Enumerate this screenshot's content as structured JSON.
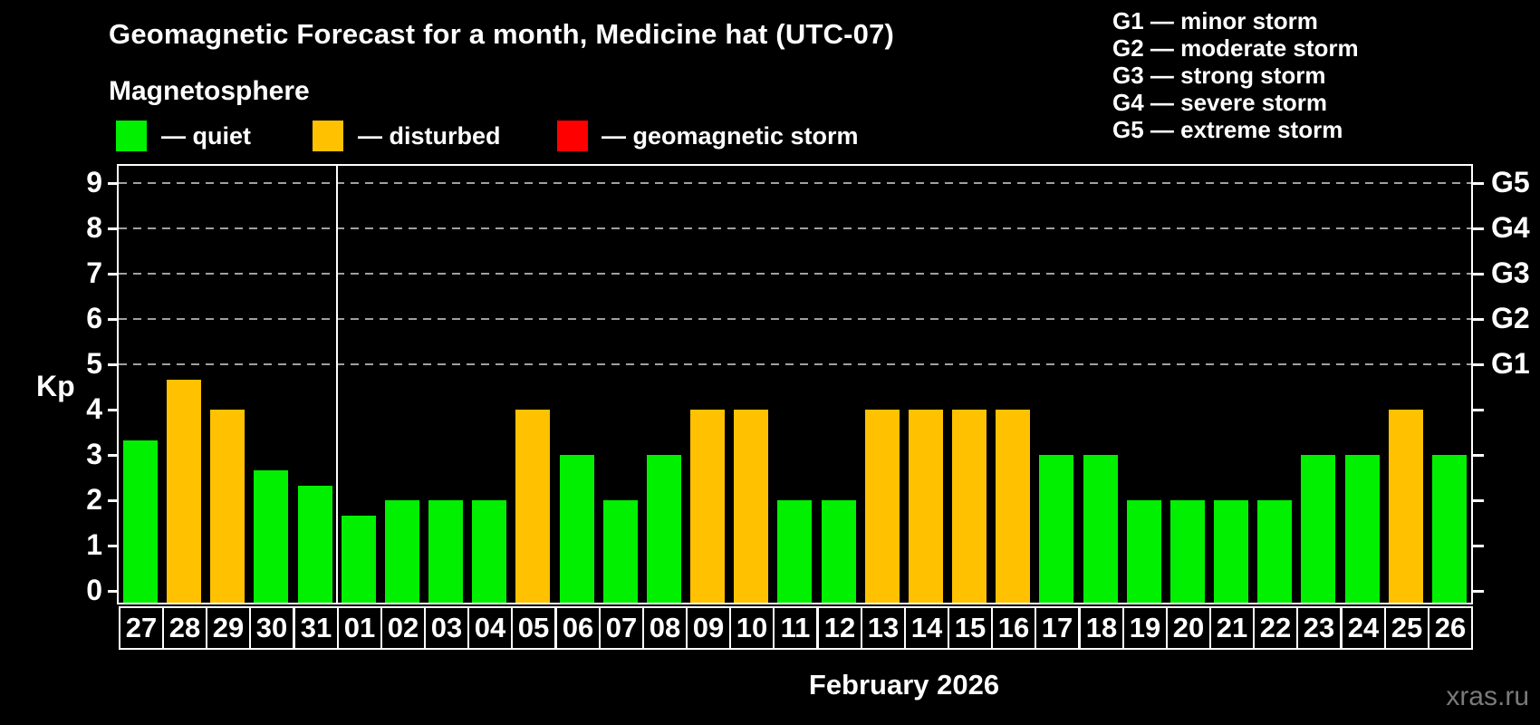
{
  "header": {
    "title": "Geomagnetic Forecast for a month, Medicine hat (UTC-07)",
    "subtitle": "Magnetosphere"
  },
  "legend": {
    "items": [
      {
        "label": "— quiet",
        "status": "quiet",
        "color": "#00f000"
      },
      {
        "label": "— disturbed",
        "status": "disturbed",
        "color": "#ffc100"
      },
      {
        "label": "— geomagnetic storm",
        "status": "storm",
        "color": "#ff0000"
      }
    ]
  },
  "g_scale_legend": {
    "items": [
      "G1 — minor storm",
      "G2 — moderate storm",
      "G3 — strong storm",
      "G4 — severe storm",
      "G5 — extreme storm"
    ]
  },
  "watermark": "xras.ru",
  "chart_data": {
    "type": "bar",
    "title": "Geomagnetic Forecast for a month, Medicine hat (UTC-07)",
    "subtitle": "Magnetosphere",
    "ylabel": "Kp",
    "xlabel": "February 2026",
    "ylim": [
      0,
      9
    ],
    "y_ticks": [
      0,
      1,
      2,
      3,
      4,
      5,
      6,
      7,
      8,
      9
    ],
    "gridlines_at": [
      5,
      6,
      7,
      8,
      9
    ],
    "grid": "dashed horizontal at G-storm levels only",
    "legend_position": "top",
    "right_axis_labels": [
      {
        "kp": 5,
        "label": "G1"
      },
      {
        "kp": 6,
        "label": "G2"
      },
      {
        "kp": 7,
        "label": "G3"
      },
      {
        "kp": 8,
        "label": "G4"
      },
      {
        "kp": 9,
        "label": "G5"
      }
    ],
    "categories": [
      "27",
      "28",
      "29",
      "30",
      "31",
      "01",
      "02",
      "03",
      "04",
      "05",
      "06",
      "07",
      "08",
      "09",
      "10",
      "11",
      "12",
      "13",
      "14",
      "15",
      "16",
      "17",
      "18",
      "19",
      "20",
      "21",
      "22",
      "23",
      "24",
      "25",
      "26"
    ],
    "values": [
      3.33,
      4.67,
      4,
      2.67,
      2.33,
      1.67,
      2,
      2,
      2,
      4,
      3,
      2,
      3,
      4,
      4,
      2,
      2,
      4,
      4,
      4,
      4,
      3,
      3,
      2,
      2,
      2,
      2,
      3,
      3,
      4,
      3
    ],
    "statuses": [
      "quiet",
      "disturbed",
      "disturbed",
      "quiet",
      "quiet",
      "quiet",
      "quiet",
      "quiet",
      "quiet",
      "disturbed",
      "quiet",
      "quiet",
      "quiet",
      "disturbed",
      "disturbed",
      "quiet",
      "quiet",
      "disturbed",
      "disturbed",
      "disturbed",
      "disturbed",
      "quiet",
      "quiet",
      "quiet",
      "quiet",
      "quiet",
      "quiet",
      "quiet",
      "quiet",
      "disturbed",
      "quiet"
    ],
    "status_colors": {
      "quiet": "#00f000",
      "disturbed": "#ffc100",
      "storm": "#ff0000"
    },
    "month_separator_before_index": 5
  }
}
